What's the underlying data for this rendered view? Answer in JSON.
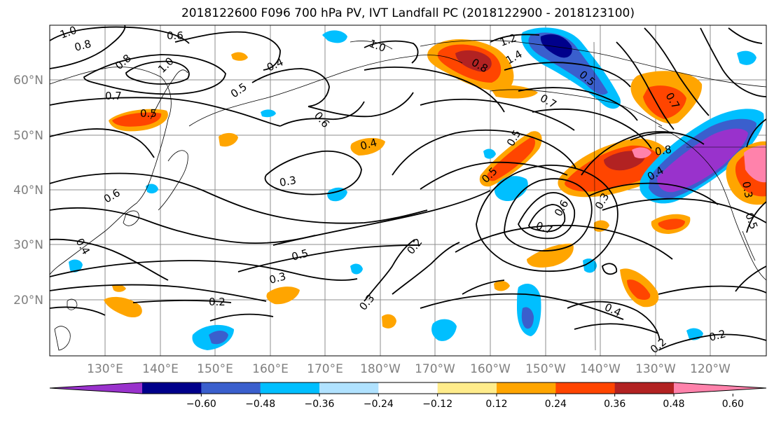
{
  "title": "2018122600 F096 700 hPa PV, IVT Landfall PC (2018122900 - 2018123100)",
  "lat_labels": [
    "60°N",
    "50°N",
    "40°N",
    "30°N",
    "20°N"
  ],
  "lon_labels": [
    "130°E",
    "140°E",
    "150°E",
    "160°E",
    "170°E",
    "180°W",
    "170°W",
    "160°W",
    "150°W",
    "140°W",
    "130°W",
    "120°W"
  ],
  "colorbar": {
    "tick_labels": [
      "−0.60",
      "−0.48",
      "−0.36",
      "−0.24",
      "−0.12",
      "0.12",
      "0.24",
      "0.36",
      "0.48",
      "0.60"
    ],
    "colors": [
      "#9932cc",
      "#00008b",
      "#3a5fcd",
      "#00bfff",
      "#b0e2ff",
      "#ffffff",
      "#ffec8b",
      "#ffa500",
      "#ff4500",
      "#b22222",
      "#ff82ab"
    ]
  },
  "contour_labels": [
    "1.0",
    "0.8",
    "0.6",
    "0.8",
    "1.0",
    "0.7",
    "0.5",
    "0.4",
    "0.6",
    "0.5",
    "1.0",
    "1.2",
    "1.4",
    "0.7",
    "0.5",
    "0.8",
    "0.4",
    "0.3",
    "0.6",
    "0.5",
    "0.3",
    "0.5",
    "0.2",
    "0.7",
    "0.6",
    "0.5",
    "0.3",
    "0.8",
    "0.4",
    "0.3",
    "0.3",
    "0.2",
    "0.2",
    "0.4",
    "0.4",
    "0.2",
    "0.7",
    "0.5"
  ]
}
